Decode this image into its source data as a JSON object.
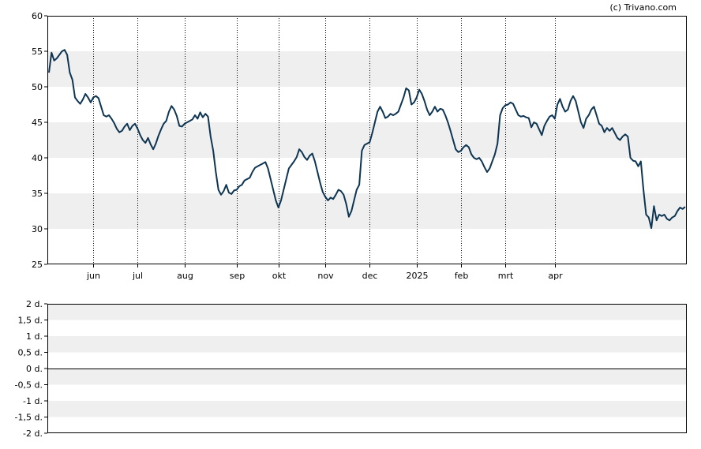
{
  "copyright": "(c) Trivano.com",
  "colors": {
    "line": "#0e3552",
    "band": "#efefef",
    "grid": "#000000",
    "frame": "#000000"
  },
  "chart_data": [
    {
      "type": "line",
      "title": "",
      "xlabel": "",
      "ylabel": "",
      "ylim": [
        25,
        60
      ],
      "y_ticks": [
        "60",
        "55",
        "50",
        "45",
        "40",
        "35",
        "30",
        "25"
      ],
      "x_ticks": [
        "jun",
        "jul",
        "aug",
        "sep",
        "okt",
        "nov",
        "dec",
        "2025",
        "feb",
        "mrt",
        "apr"
      ],
      "x_tick_index": [
        17,
        34,
        52,
        72,
        88,
        106,
        123,
        141,
        158,
        175,
        194
      ],
      "grid": "vertical dotted at month ticks; alternating shaded horizontal bands",
      "series": [
        {
          "name": "",
          "values": [
            52.0,
            54.8,
            53.7,
            54.0,
            54.5,
            55.0,
            55.2,
            54.5,
            52.0,
            51.0,
            48.5,
            48.0,
            47.6,
            48.2,
            49.0,
            48.5,
            47.8,
            48.5,
            48.7,
            48.4,
            47.2,
            46.0,
            45.8,
            46.0,
            45.5,
            44.9,
            44.1,
            43.6,
            43.8,
            44.4,
            44.8,
            43.9,
            44.5,
            44.8,
            44.1,
            43.2,
            42.5,
            42.1,
            42.8,
            41.9,
            41.2,
            42.0,
            43.1,
            44.0,
            44.8,
            45.2,
            46.5,
            47.3,
            46.8,
            45.9,
            44.5,
            44.4,
            44.8,
            45.0,
            45.2,
            45.4,
            46.0,
            45.5,
            46.4,
            45.7,
            46.2,
            45.8,
            43.0,
            41.0,
            38.0,
            35.5,
            34.8,
            35.3,
            36.2,
            35.1,
            34.9,
            35.4,
            35.5,
            36.0,
            36.2,
            36.8,
            37.0,
            37.2,
            38.0,
            38.6,
            38.8,
            39.0,
            39.2,
            39.4,
            38.5,
            37.0,
            35.5,
            34.0,
            33.0,
            34.0,
            35.5,
            37.0,
            38.5,
            39.0,
            39.5,
            40.1,
            41.2,
            40.8,
            40.1,
            39.7,
            40.3,
            40.6,
            39.5,
            38.0,
            36.5,
            35.2,
            34.5,
            34.0,
            34.4,
            34.2,
            34.8,
            35.5,
            35.3,
            34.8,
            33.5,
            31.7,
            32.5,
            34.0,
            35.5,
            36.2,
            41.0,
            41.8,
            42.0,
            42.2,
            43.5,
            45.0,
            46.5,
            47.2,
            46.5,
            45.6,
            45.8,
            46.2,
            46.0,
            46.2,
            46.5,
            47.5,
            48.5,
            49.8,
            49.5,
            47.5,
            47.8,
            48.5,
            49.6,
            49.0,
            48.0,
            46.8,
            46.0,
            46.5,
            47.2,
            46.5,
            46.9,
            46.8,
            46.0,
            45.0,
            43.8,
            42.5,
            41.2,
            40.8,
            41.0,
            41.5,
            41.8,
            41.5,
            40.5,
            40.0,
            39.8,
            40.0,
            39.5,
            38.7,
            38.0,
            38.5,
            39.5,
            40.5,
            42.0,
            46.0,
            47.0,
            47.4,
            47.5,
            47.8,
            47.6,
            46.8,
            46.0,
            45.8,
            45.9,
            45.7,
            45.6,
            44.3,
            45.0,
            44.8,
            44.0,
            43.2,
            44.5,
            45.2,
            45.8,
            46.0,
            45.5,
            47.5,
            48.3,
            47.2,
            46.5,
            46.8,
            48.0,
            48.7,
            48.0,
            46.5,
            45.0,
            44.2,
            45.5,
            46.0,
            46.8,
            47.2,
            46.0,
            44.8,
            44.5,
            43.6,
            44.2,
            43.8,
            44.2,
            43.5,
            42.8,
            42.5,
            43.0,
            43.3,
            43.0,
            40.0,
            39.6,
            39.5,
            38.8,
            39.5,
            35.5,
            32.0,
            31.6,
            30.1,
            33.2,
            31.2,
            32.0,
            31.8,
            32.0,
            31.4,
            31.2,
            31.6,
            31.8,
            32.5,
            33.0,
            32.8,
            33.1
          ]
        }
      ]
    },
    {
      "type": "line",
      "title": "",
      "xlabel": "",
      "ylabel": "",
      "ylim": [
        -2,
        2
      ],
      "y_ticks": [
        "2 d.",
        "1,5 d.",
        "1 d.",
        "0,5 d.",
        "0 d.",
        "-0,5 d.",
        "-1 d.",
        "-1,5 d.",
        "-2 d."
      ],
      "reference_line": 0,
      "series": []
    }
  ]
}
